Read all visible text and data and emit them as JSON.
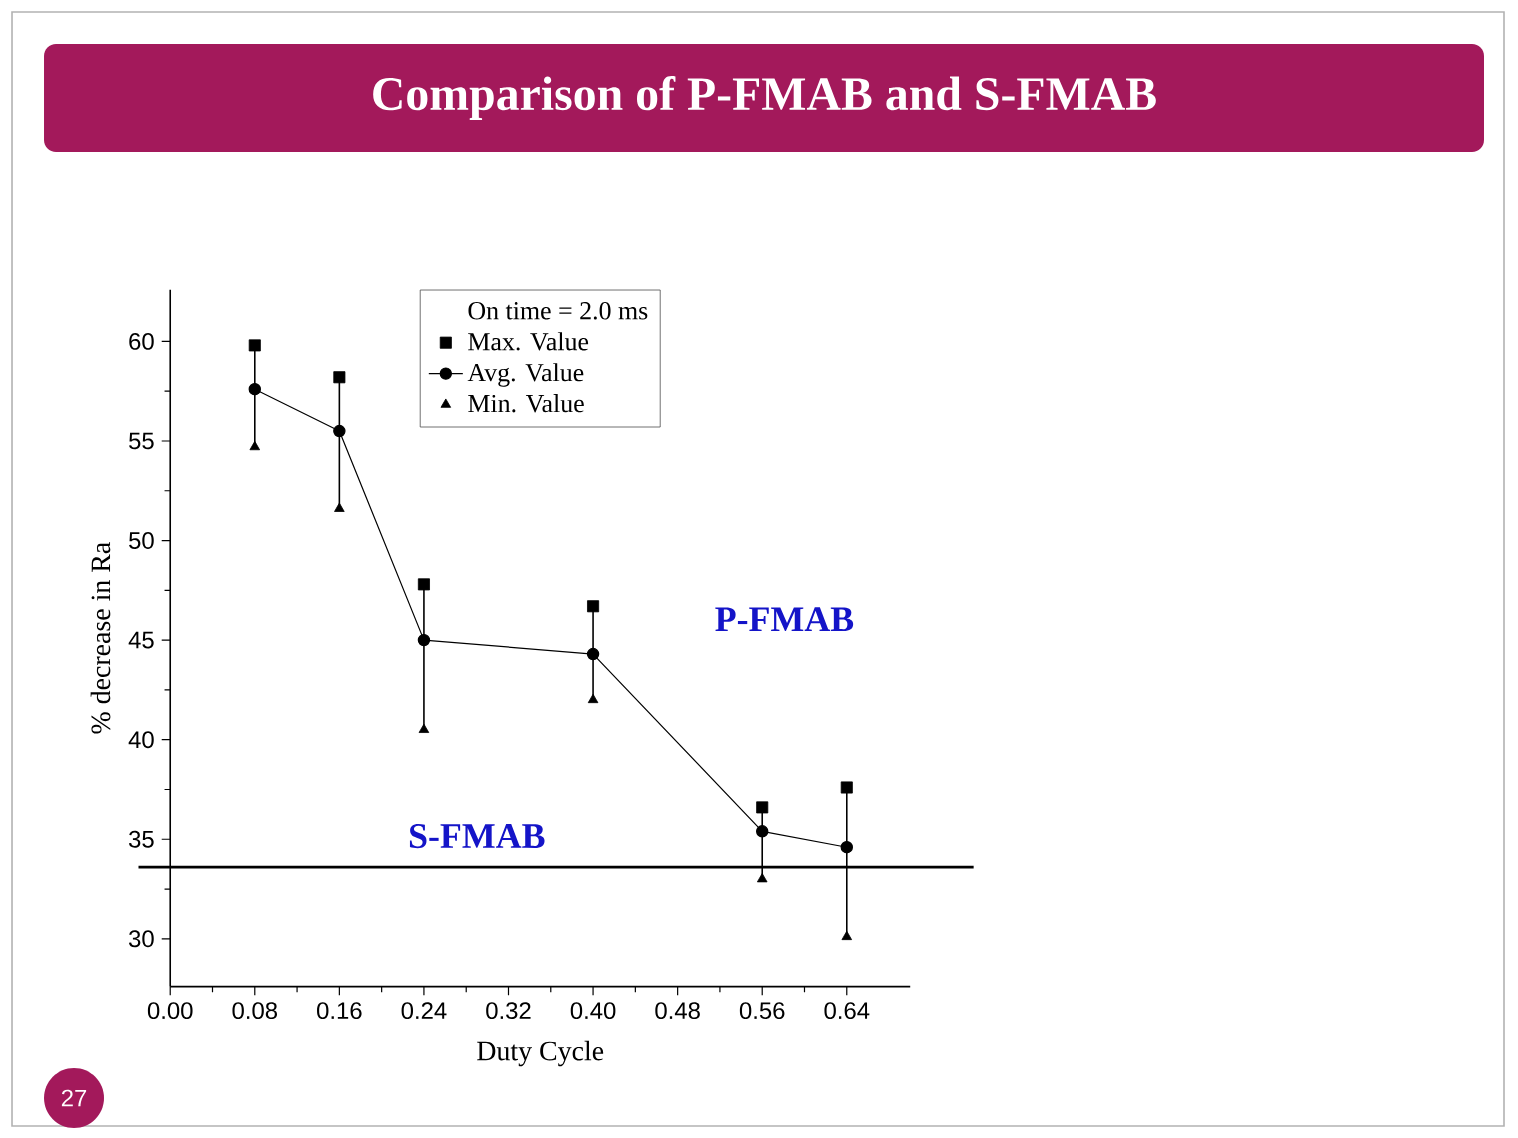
{
  "chart_data": {
    "type": "line",
    "title": "Comparison of P-FMAB and S-FMAB",
    "xlabel": "Duty Cycle",
    "ylabel": "% decrease in Ra",
    "legend_title": "On time = 2.0 ms",
    "x": [
      0.08,
      0.16,
      0.24,
      0.4,
      0.56,
      0.64
    ],
    "xlim": [
      0,
      0.7
    ],
    "ylim": [
      27.6,
      62.6
    ],
    "xticks": [
      {
        "value": 0,
        "label": "0.00"
      },
      0.08,
      0.16,
      0.24,
      0.32,
      {
        "value": 0.4,
        "label": "0.40"
      },
      0.48,
      0.56,
      0.64
    ],
    "yticks": [
      30,
      35,
      40,
      45,
      50,
      55,
      60
    ],
    "legend": "top",
    "series": [
      {
        "name": "Max. Value",
        "type": "scatter",
        "marker": "square",
        "color": "#000000",
        "values": [
          59.8,
          58.2,
          47.8,
          46.7,
          36.6,
          37.6
        ]
      },
      {
        "name": "Avg. Value",
        "type": "line",
        "marker": "circle",
        "color": "#000000",
        "values": [
          57.6,
          55.5,
          45.0,
          44.3,
          35.4,
          34.6
        ],
        "errors": [
          [
            54.7,
            59.8
          ],
          [
            51.6,
            58.2
          ],
          [
            40.5,
            47.8
          ],
          [
            42.0,
            46.7
          ],
          [
            33.0,
            36.6
          ],
          [
            30.1,
            37.6
          ]
        ]
      },
      {
        "name": "Min. Value",
        "type": "scatter",
        "marker": "triangle",
        "color": "#000000",
        "values": [
          54.7,
          51.6,
          40.5,
          42.0,
          33.0,
          30.1
        ]
      }
    ],
    "ref_lines": [
      {
        "axis": "y",
        "value": 33.6,
        "label": "S-FMAB",
        "color": "#000000"
      }
    ],
    "annotations": [
      "P-FMAB",
      "27"
    ]
  }
}
